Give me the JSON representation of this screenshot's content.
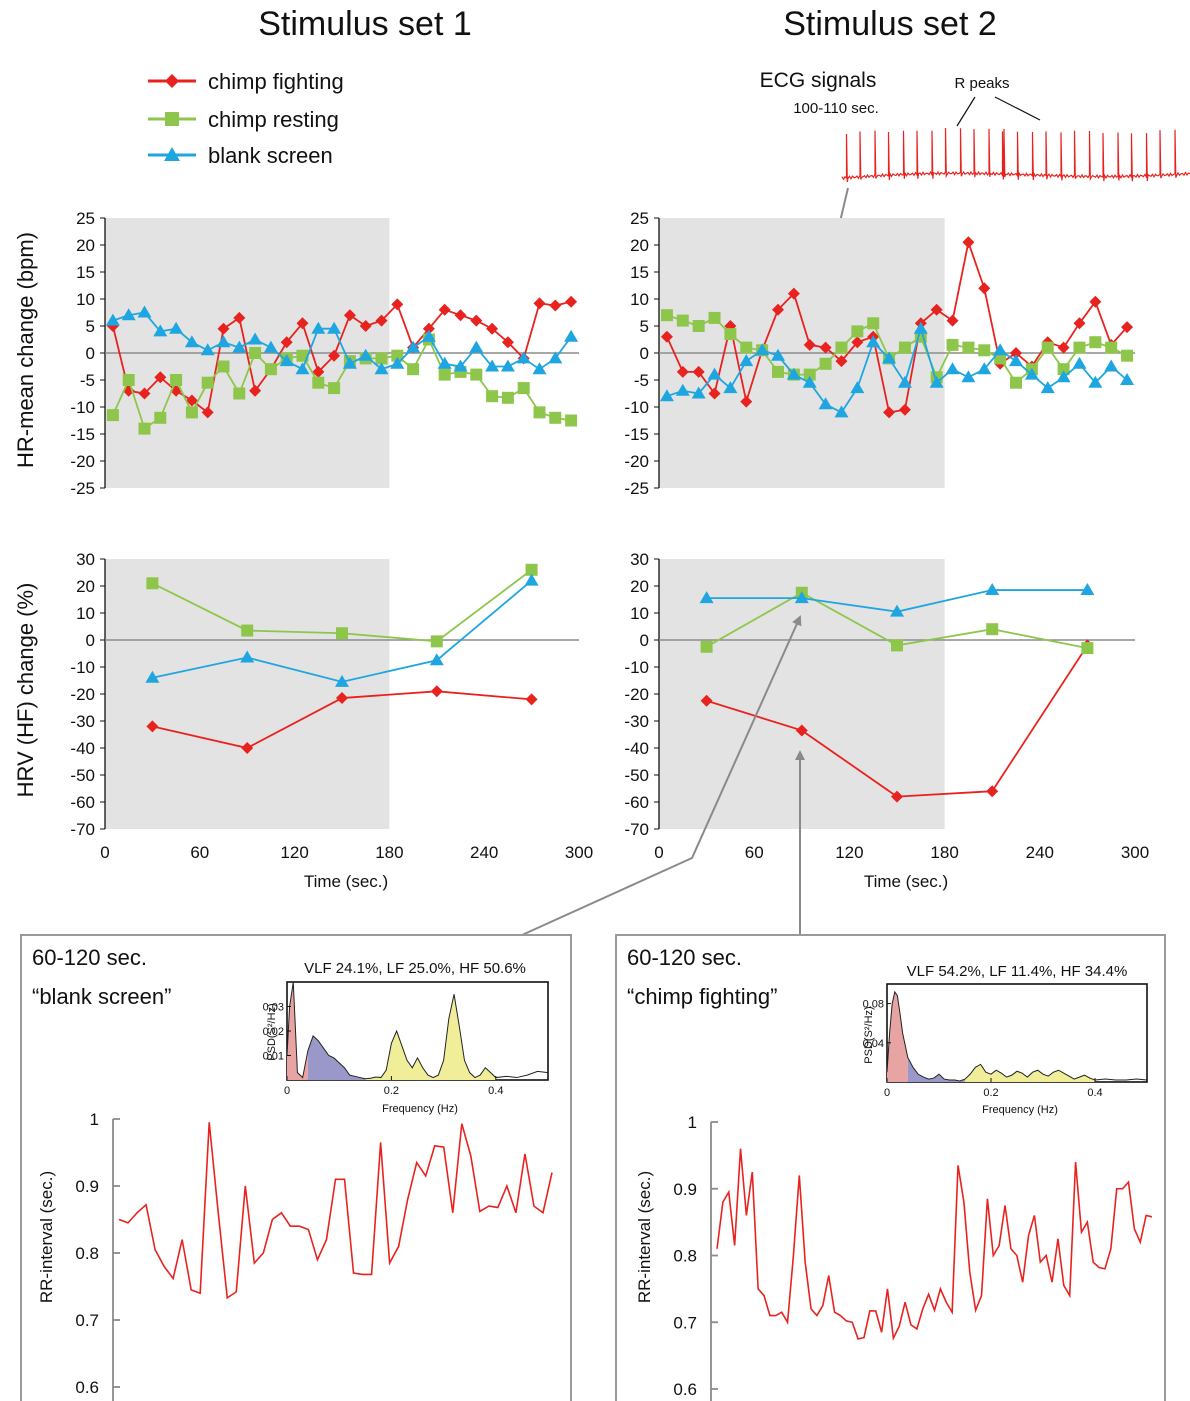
{
  "headers": {
    "set1": "Stimulus set 1",
    "set2": "Stimulus set 2"
  },
  "legend": [
    {
      "label": "chimp fighting",
      "color": "#e8231f",
      "marker": "diamond"
    },
    {
      "label": "chimp resting",
      "color": "#8dc64b",
      "marker": "square"
    },
    {
      "label": "blank screen",
      "color": "#1fa6e0",
      "marker": "triangle"
    }
  ],
  "ecg": {
    "title": "ECG signals",
    "window": "100-110 sec.",
    "peaks_label": "R peaks"
  },
  "hr_ylabel": "HR-mean change (bpm)",
  "hrv_ylabel": "HRV (HF) change (%)",
  "time_xlabel": "Time (sec.)",
  "insets": [
    {
      "window": "60-120 sec.",
      "condition": "“blank screen”",
      "summary": "VLF 24.1%, LF 25.0%, HF 50.6%",
      "ylabel": "PSD(S²/Hz)",
      "xlabel": "Frequency (Hz)"
    },
    {
      "window": "60-120 sec.",
      "condition": "“chimp fighting”",
      "summary": "VLF 54.2%, LF 11.4%, HF 34.4%",
      "ylabel": "PSD(S²/Hz)",
      "xlabel": "Frequency (Hz)"
    }
  ],
  "rr_ylabel": "RR-interval (sec.)",
  "chart_data": [
    {
      "id": "hr-set1",
      "type": "line",
      "xlabel": "",
      "ylabel": "HR-mean change (bpm)",
      "xlim": [
        0,
        300
      ],
      "ylim": [
        -25,
        25
      ],
      "xticks": [
        0,
        60,
        120,
        180,
        240,
        300
      ],
      "yticks": [
        25,
        20,
        15,
        10,
        5,
        0,
        -5,
        -10,
        -15,
        -20,
        -25
      ],
      "shaded_x": [
        0,
        180
      ],
      "series": [
        {
          "name": "chimp fighting",
          "color": "#e8231f",
          "marker": "diamond",
          "x": [
            5,
            15,
            25,
            35,
            45,
            55,
            65,
            75,
            85,
            95,
            105,
            115,
            125,
            135,
            145,
            155,
            165,
            175,
            185,
            195,
            205,
            215,
            225,
            235,
            245,
            255,
            265,
            275,
            285,
            295
          ],
          "y": [
            5,
            -7,
            -7.5,
            -4.5,
            -7,
            -8.8,
            -11,
            4.5,
            6.5,
            -7,
            -3,
            2,
            5.5,
            -3.5,
            -0.5,
            7,
            5,
            6,
            9,
            1,
            4.5,
            8,
            7,
            6,
            4.5,
            2,
            -1,
            9.2,
            8.8,
            9.5
          ]
        },
        {
          "name": "chimp resting",
          "color": "#8dc64b",
          "marker": "square",
          "x": [
            5,
            15,
            25,
            35,
            45,
            55,
            65,
            75,
            85,
            95,
            105,
            115,
            125,
            135,
            145,
            155,
            165,
            175,
            185,
            195,
            205,
            215,
            225,
            235,
            245,
            255,
            265,
            275,
            285,
            295
          ],
          "y": [
            -11.5,
            -5,
            -14,
            -12,
            -5,
            -11,
            -5.5,
            -2.5,
            -7.5,
            0,
            -3,
            -1,
            -0.5,
            -5.5,
            -6.5,
            -1.5,
            -1,
            -1,
            -0.5,
            -3,
            2.5,
            -4,
            -3.5,
            -4,
            -8,
            -8.3,
            -6.5,
            -11,
            -12,
            -12.5
          ]
        },
        {
          "name": "blank screen",
          "color": "#1fa6e0",
          "marker": "triangle",
          "x": [
            5,
            15,
            25,
            35,
            45,
            55,
            65,
            75,
            85,
            95,
            105,
            115,
            125,
            135,
            145,
            155,
            165,
            175,
            185,
            195,
            205,
            215,
            225,
            235,
            245,
            255,
            265,
            275,
            285,
            295
          ],
          "y": [
            6,
            7,
            7.5,
            4,
            4.5,
            2,
            0.5,
            2,
            1,
            2.5,
            1,
            -1.5,
            -3,
            4.5,
            4.5,
            -2,
            -0.5,
            -3,
            -2,
            1,
            3,
            -2,
            -2.5,
            1,
            -2.5,
            -2.5,
            -1,
            -3,
            -1,
            3
          ]
        }
      ]
    },
    {
      "id": "hr-set2",
      "type": "line",
      "xlabel": "",
      "ylabel": "",
      "xlim": [
        0,
        300
      ],
      "ylim": [
        -25,
        25
      ],
      "xticks": [
        0,
        60,
        120,
        180,
        240,
        300
      ],
      "yticks": [
        25,
        20,
        15,
        10,
        5,
        0,
        -5,
        -10,
        -15,
        -20,
        -25
      ],
      "shaded_x": [
        0,
        180
      ],
      "series": [
        {
          "name": "chimp fighting",
          "color": "#e8231f",
          "marker": "diamond",
          "x": [
            5,
            15,
            25,
            35,
            45,
            55,
            65,
            75,
            85,
            95,
            105,
            115,
            125,
            135,
            145,
            155,
            165,
            175,
            185,
            195,
            205,
            215,
            225,
            235,
            245,
            255,
            265,
            275,
            285,
            295
          ],
          "y": [
            3,
            -3.5,
            -3.5,
            -7.5,
            5,
            -9,
            0.5,
            8,
            11,
            1.5,
            1,
            -1.5,
            2,
            3,
            -11,
            -10.5,
            5.5,
            8,
            6,
            20.5,
            12,
            -2,
            0,
            -2.5,
            2,
            1,
            5.5,
            9.5,
            1.5,
            4.8
          ]
        },
        {
          "name": "chimp resting",
          "color": "#8dc64b",
          "marker": "square",
          "x": [
            5,
            15,
            25,
            35,
            45,
            55,
            65,
            75,
            85,
            95,
            105,
            115,
            125,
            135,
            145,
            155,
            165,
            175,
            185,
            195,
            205,
            215,
            225,
            235,
            245,
            255,
            265,
            275,
            285,
            295
          ],
          "y": [
            7,
            6,
            5,
            6.5,
            3.5,
            1,
            0.5,
            -3.5,
            -4,
            -4,
            -2,
            1,
            4,
            5.5,
            -1,
            1,
            3,
            -4.5,
            1.5,
            1,
            0.5,
            -1,
            -5.5,
            -3,
            1,
            -3,
            1,
            2,
            1,
            -0.5
          ]
        },
        {
          "name": "blank screen",
          "color": "#1fa6e0",
          "marker": "triangle",
          "x": [
            5,
            15,
            25,
            35,
            45,
            55,
            65,
            75,
            85,
            95,
            105,
            115,
            125,
            135,
            145,
            155,
            165,
            175,
            185,
            195,
            205,
            215,
            225,
            235,
            245,
            255,
            265,
            275,
            285,
            295
          ],
          "y": [
            -8,
            -7,
            -7.5,
            -4,
            -6.5,
            -1.5,
            0.5,
            -0.5,
            -4,
            -5.5,
            -9.5,
            -11,
            -6.5,
            2,
            -1,
            -5.5,
            4.5,
            -5.5,
            -3,
            -4.5,
            -3,
            0.5,
            -1.5,
            -4,
            -6.5,
            -4.5,
            -2,
            -5.5,
            -2.5,
            -5
          ]
        }
      ]
    },
    {
      "id": "hrv-set1",
      "type": "line",
      "xlabel": "Time (sec.)",
      "ylabel": "HRV (HF) change (%)",
      "xlim": [
        0,
        300
      ],
      "ylim": [
        -70,
        30
      ],
      "xticks": [
        0,
        60,
        120,
        180,
        240,
        300
      ],
      "yticks": [
        30,
        20,
        10,
        0,
        -10,
        -20,
        -30,
        -40,
        -50,
        -60,
        -70
      ],
      "shaded_x": [
        0,
        180
      ],
      "series": [
        {
          "name": "chimp fighting",
          "color": "#e8231f",
          "marker": "diamond",
          "x": [
            30,
            90,
            150,
            210,
            270
          ],
          "y": [
            -32,
            -40,
            -21.5,
            -19,
            -22
          ]
        },
        {
          "name": "chimp resting",
          "color": "#8dc64b",
          "marker": "square",
          "x": [
            30,
            90,
            150,
            210,
            270
          ],
          "y": [
            21,
            3.5,
            2.5,
            -0.5,
            26
          ]
        },
        {
          "name": "blank screen",
          "color": "#1fa6e0",
          "marker": "triangle",
          "x": [
            30,
            90,
            150,
            210,
            270
          ],
          "y": [
            -14,
            -6.5,
            -15.5,
            -7.5,
            22
          ]
        }
      ]
    },
    {
      "id": "hrv-set2",
      "type": "line",
      "xlabel": "Time (sec.)",
      "ylabel": "",
      "xlim": [
        0,
        300
      ],
      "ylim": [
        -70,
        30
      ],
      "xticks": [
        0,
        60,
        120,
        180,
        240,
        300
      ],
      "yticks": [
        30,
        20,
        10,
        0,
        -10,
        -20,
        -30,
        -40,
        -50,
        -60,
        -70
      ],
      "shaded_x": [
        0,
        180
      ],
      "series": [
        {
          "name": "chimp fighting",
          "color": "#e8231f",
          "marker": "diamond",
          "x": [
            30,
            90,
            150,
            210,
            270
          ],
          "y": [
            -22.5,
            -33.5,
            -58,
            -56,
            -2
          ]
        },
        {
          "name": "chimp resting",
          "color": "#8dc64b",
          "marker": "square",
          "x": [
            30,
            90,
            150,
            210,
            270
          ],
          "y": [
            -2.5,
            17.5,
            -2,
            4,
            -3
          ]
        },
        {
          "name": "blank screen",
          "color": "#1fa6e0",
          "marker": "triangle",
          "x": [
            30,
            90,
            150,
            210,
            270
          ],
          "y": [
            15.5,
            15.5,
            10.5,
            18.5,
            18.5
          ]
        }
      ]
    },
    {
      "id": "psd-blank",
      "type": "area",
      "xlabel": "Frequency (Hz)",
      "ylabel": "PSD(S²/Hz)",
      "xlim": [
        0,
        0.5
      ],
      "ylim": [
        0,
        0.04
      ],
      "xticks": [
        0,
        0.2,
        0.4
      ],
      "yticks": [
        0.01,
        0.02,
        0.03
      ],
      "bands": [
        {
          "name": "VLF",
          "range": [
            0,
            0.04
          ],
          "color": "#e8a3a3"
        },
        {
          "name": "LF",
          "range": [
            0.04,
            0.15
          ],
          "color": "#9a98c9"
        },
        {
          "name": "HF",
          "range": [
            0.15,
            0.4
          ],
          "color": "#f1ee9a"
        }
      ],
      "x": [
        0,
        0.005,
        0.012,
        0.02,
        0.03,
        0.04,
        0.05,
        0.06,
        0.07,
        0.08,
        0.09,
        0.1,
        0.11,
        0.12,
        0.13,
        0.14,
        0.15,
        0.16,
        0.17,
        0.18,
        0.19,
        0.2,
        0.21,
        0.22,
        0.23,
        0.24,
        0.25,
        0.26,
        0.27,
        0.28,
        0.29,
        0.3,
        0.31,
        0.32,
        0.33,
        0.34,
        0.35,
        0.36,
        0.37,
        0.38,
        0.39,
        0.4,
        0.42,
        0.44,
        0.46,
        0.48,
        0.5
      ],
      "y": [
        0.01,
        0.03,
        0.04,
        0.003,
        0.001,
        0.012,
        0.018,
        0.016,
        0.013,
        0.01,
        0.009,
        0.007,
        0.005,
        0.002,
        0.0015,
        0.001,
        0.0005,
        0.0007,
        0.0012,
        0.001,
        0.004,
        0.015,
        0.02,
        0.014,
        0.008,
        0.005,
        0.009,
        0.005,
        0.002,
        0.001,
        0.002,
        0.008,
        0.025,
        0.035,
        0.022,
        0.008,
        0.003,
        0.001,
        0.002,
        0.005,
        0.003,
        0.001,
        0.0015,
        0.001,
        0.002,
        0.0035,
        0.003
      ]
    },
    {
      "id": "psd-fight",
      "type": "area",
      "xlabel": "Frequency (Hz)",
      "ylabel": "PSD(S²/Hz)",
      "xlim": [
        0,
        0.5
      ],
      "ylim": [
        0,
        0.1
      ],
      "xticks": [
        0,
        0.2,
        0.4
      ],
      "yticks": [
        0.04,
        0.08
      ],
      "bands": [
        {
          "name": "VLF",
          "range": [
            0,
            0.04
          ],
          "color": "#e8a3a3"
        },
        {
          "name": "LF",
          "range": [
            0.04,
            0.15
          ],
          "color": "#9a98c9"
        },
        {
          "name": "HF",
          "range": [
            0.15,
            0.4
          ],
          "color": "#f1ee9a"
        }
      ],
      "x": [
        0,
        0.005,
        0.01,
        0.015,
        0.02,
        0.025,
        0.03,
        0.04,
        0.05,
        0.06,
        0.07,
        0.08,
        0.09,
        0.1,
        0.11,
        0.12,
        0.13,
        0.14,
        0.15,
        0.16,
        0.17,
        0.18,
        0.19,
        0.2,
        0.21,
        0.22,
        0.23,
        0.24,
        0.25,
        0.26,
        0.27,
        0.28,
        0.29,
        0.3,
        0.31,
        0.32,
        0.33,
        0.34,
        0.35,
        0.36,
        0.37,
        0.38,
        0.39,
        0.4,
        0.42,
        0.44,
        0.46,
        0.48,
        0.5
      ],
      "y": [
        0.01,
        0.05,
        0.08,
        0.092,
        0.088,
        0.07,
        0.05,
        0.025,
        0.015,
        0.008,
        0.005,
        0.003,
        0.004,
        0.008,
        0.003,
        0.002,
        0.002,
        0.001,
        0.003,
        0.008,
        0.015,
        0.018,
        0.01,
        0.008,
        0.012,
        0.009,
        0.005,
        0.007,
        0.011,
        0.009,
        0.005,
        0.01,
        0.012,
        0.008,
        0.006,
        0.01,
        0.012,
        0.009,
        0.006,
        0.003,
        0.005,
        0.007,
        0.004,
        0.002,
        0.003,
        0.002,
        0.002,
        0.003,
        0.002
      ]
    },
    {
      "id": "rr-blank",
      "type": "line",
      "xlabel": "",
      "ylabel": "RR-interval (sec.)",
      "ylim": [
        0.6,
        1
      ],
      "yticks": [
        1,
        0.9,
        0.8,
        0.7,
        0.6
      ],
      "series": [
        {
          "name": "blank screen",
          "color": "#e8231f",
          "values": [
            0.85,
            0.845,
            0.86,
            0.872,
            0.805,
            0.78,
            0.762,
            0.82,
            0.745,
            0.74,
            0.995,
            0.86,
            0.733,
            0.742,
            0.9,
            0.785,
            0.8,
            0.85,
            0.86,
            0.84,
            0.84,
            0.835,
            0.79,
            0.82,
            0.91,
            0.91,
            0.77,
            0.768,
            0.768,
            0.965,
            0.785,
            0.81,
            0.88,
            0.935,
            0.915,
            0.96,
            0.958,
            0.86,
            0.993,
            0.945,
            0.862,
            0.87,
            0.868,
            0.9,
            0.86,
            0.948,
            0.87,
            0.86,
            0.92
          ]
        }
      ]
    },
    {
      "id": "rr-fight",
      "type": "line",
      "xlabel": "",
      "ylabel": "RR-interval (sec.)",
      "ylim": [
        0.6,
        1
      ],
      "yticks": [
        1,
        0.9,
        0.8,
        0.7,
        0.6
      ],
      "series": [
        {
          "name": "chimp fighting",
          "color": "#e8231f",
          "values": [
            0.81,
            0.88,
            0.895,
            0.815,
            0.96,
            0.86,
            0.925,
            0.75,
            0.74,
            0.71,
            0.71,
            0.715,
            0.7,
            0.8,
            0.92,
            0.79,
            0.72,
            0.71,
            0.725,
            0.77,
            0.715,
            0.71,
            0.702,
            0.7,
            0.675,
            0.677,
            0.717,
            0.717,
            0.685,
            0.75,
            0.676,
            0.694,
            0.73,
            0.696,
            0.69,
            0.72,
            0.742,
            0.718,
            0.75,
            0.73,
            0.715,
            0.935,
            0.88,
            0.775,
            0.718,
            0.74,
            0.885,
            0.8,
            0.815,
            0.875,
            0.81,
            0.8,
            0.76,
            0.83,
            0.86,
            0.79,
            0.8,
            0.76,
            0.825,
            0.755,
            0.74,
            0.94,
            0.835,
            0.85,
            0.79,
            0.782,
            0.78,
            0.81,
            0.9,
            0.9,
            0.91,
            0.84,
            0.82,
            0.86,
            0.858
          ]
        }
      ]
    }
  ]
}
